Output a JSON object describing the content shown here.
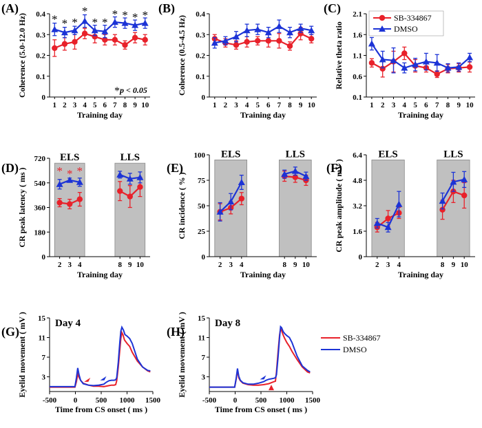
{
  "colors": {
    "sb": "#e8212a",
    "dmso": "#1c33d6",
    "shade": "#c0c0c0",
    "axis": "#000000"
  },
  "legend": {
    "sb": "SB-334867",
    "dmso": "DMSO"
  },
  "significance_note": {
    "star": "*",
    "text": "p < 0.05"
  },
  "chart_data": [
    {
      "id": "A",
      "panel_label": "(A)",
      "type": "line",
      "ylabel": "Coherence (5.0-12.0 Hz)",
      "xlabel": "Training day",
      "x": [
        1,
        2,
        3,
        4,
        5,
        6,
        7,
        8,
        9,
        10
      ],
      "xticks": [
        "1",
        "2",
        "3",
        "4",
        "5",
        "6",
        "7",
        "8",
        "9",
        "10"
      ],
      "ylim": [
        0,
        0.4
      ],
      "yticks": [
        "0",
        "0.1",
        "0.2",
        "0.3",
        "0.4"
      ],
      "series": [
        {
          "name": "SB-334867",
          "values": [
            0.235,
            0.255,
            0.265,
            0.305,
            0.29,
            0.275,
            0.275,
            0.25,
            0.285,
            0.275
          ],
          "err": [
            0.04,
            0.03,
            0.035,
            0.025,
            0.03,
            0.025,
            0.025,
            0.02,
            0.025,
            0.025
          ]
        },
        {
          "name": "DMSO",
          "values": [
            0.325,
            0.31,
            0.32,
            0.365,
            0.32,
            0.315,
            0.36,
            0.355,
            0.345,
            0.355
          ],
          "err": [
            0.03,
            0.025,
            0.02,
            0.03,
            0.025,
            0.03,
            0.025,
            0.025,
            0.025,
            0.025
          ]
        }
      ],
      "stars": [
        {
          "x": 1,
          "y": 0.375,
          "label": "*"
        },
        {
          "x": 2,
          "y": 0.355,
          "label": "*"
        },
        {
          "x": 3,
          "y": 0.36,
          "label": "*"
        },
        {
          "x": 4,
          "y": 0.415,
          "label": "*"
        },
        {
          "x": 5,
          "y": 0.36,
          "label": "*"
        },
        {
          "x": 6,
          "y": 0.36,
          "label": "*"
        },
        {
          "x": 7,
          "y": 0.4,
          "label": "*"
        },
        {
          "x": 8,
          "y": 0.395,
          "label": "*"
        },
        {
          "x": 9,
          "y": 0.385,
          "label": "*"
        },
        {
          "x": 10,
          "y": 0.395,
          "label": "*"
        }
      ]
    },
    {
      "id": "B",
      "panel_label": "(B)",
      "type": "line",
      "ylabel": "Coherence (0.5-4.5 Hz)",
      "xlabel": "Training day",
      "x": [
        1,
        2,
        3,
        4,
        5,
        6,
        7,
        8,
        9,
        10
      ],
      "xticks": [
        "1",
        "2",
        "3",
        "4",
        "5",
        "6",
        "7",
        "8",
        "9",
        "10"
      ],
      "ylim": [
        0,
        0.4
      ],
      "yticks": [
        "0",
        "0.1",
        "0.2",
        "0.3",
        "0.4"
      ],
      "series": [
        {
          "name": "SB-334867",
          "values": [
            0.28,
            0.26,
            0.25,
            0.265,
            0.27,
            0.27,
            0.27,
            0.245,
            0.305,
            0.28
          ],
          "err": [
            0.02,
            0.02,
            0.02,
            0.025,
            0.02,
            0.03,
            0.035,
            0.02,
            0.03,
            0.02
          ]
        },
        {
          "name": "DMSO",
          "values": [
            0.26,
            0.27,
            0.29,
            0.32,
            0.325,
            0.31,
            0.34,
            0.31,
            0.33,
            0.32
          ],
          "err": [
            0.025,
            0.02,
            0.025,
            0.03,
            0.025,
            0.025,
            0.03,
            0.025,
            0.02,
            0.02
          ]
        }
      ]
    },
    {
      "id": "C",
      "panel_label": "(C)",
      "type": "line",
      "ylabel": "Relative theta ratio",
      "xlabel": "Training day",
      "x": [
        1,
        2,
        3,
        4,
        5,
        6,
        7,
        8,
        9,
        10
      ],
      "xticks": [
        "1",
        "2",
        "3",
        "4",
        "5",
        "6",
        "7",
        "8",
        "9",
        "10"
      ],
      "ylim": [
        0.1,
        2.1
      ],
      "yticks": [
        "0.1",
        "0.6",
        "1.1",
        "1.6",
        "2.1"
      ],
      "series": [
        {
          "name": "SB-334867",
          "values": [
            0.92,
            0.78,
            0.95,
            1.15,
            0.85,
            0.8,
            0.65,
            0.78,
            0.8,
            0.82
          ],
          "err": [
            0.1,
            0.2,
            0.25,
            0.15,
            0.15,
            0.1,
            0.08,
            0.1,
            0.1,
            0.12
          ]
        },
        {
          "name": "DMSO",
          "values": [
            1.38,
            1.0,
            0.98,
            0.8,
            0.88,
            0.95,
            0.92,
            0.8,
            0.82,
            1.05
          ],
          "err": [
            0.15,
            0.2,
            0.3,
            0.12,
            0.15,
            0.2,
            0.2,
            0.1,
            0.1,
            0.1
          ]
        }
      ]
    },
    {
      "id": "D",
      "panel_label": "(D)",
      "type": "line",
      "ylabel": "CR peak latency ( ms )",
      "xlabel": "Training day",
      "x": [
        2,
        3,
        4,
        8,
        9,
        10
      ],
      "xticks": [
        "2",
        "3",
        "4",
        "8",
        "9",
        "10"
      ],
      "xdomain": [
        1,
        11
      ],
      "ylim": [
        0,
        720
      ],
      "yticks": [
        "0",
        "180",
        "360",
        "540",
        "720"
      ],
      "groups": [
        {
          "label": "ELS",
          "x": [
            1.5,
            4.5
          ]
        },
        {
          "label": "LLS",
          "x": [
            7.5,
            10.5
          ]
        }
      ],
      "series": [
        {
          "name": "SB-334867",
          "values": [
            395,
            385,
            420,
            480,
            440,
            510
          ],
          "err": [
            30,
            35,
            50,
            70,
            80,
            70
          ]
        },
        {
          "name": "DMSO",
          "values": [
            530,
            560,
            545,
            600,
            570,
            580
          ],
          "err": [
            35,
            15,
            30,
            25,
            40,
            40
          ]
        }
      ],
      "stars": [
        {
          "x": 2,
          "y": 630,
          "label": "*"
        },
        {
          "x": 3,
          "y": 610,
          "label": "*"
        },
        {
          "x": 4,
          "y": 630,
          "label": "*"
        }
      ]
    },
    {
      "id": "E",
      "panel_label": "(E)",
      "type": "line",
      "ylabel": "CR incidence ( % )",
      "xlabel": "Training day",
      "x": [
        2,
        3,
        4,
        8,
        9,
        10
      ],
      "xticks": [
        "2",
        "3",
        "4",
        "8",
        "9",
        "10"
      ],
      "xdomain": [
        1,
        11
      ],
      "ylim": [
        0,
        100
      ],
      "yticks": [
        "0",
        "25",
        "50",
        "75",
        "100"
      ],
      "groups": [
        {
          "label": "ELS",
          "x": [
            1.5,
            4.5
          ]
        },
        {
          "label": "LLS",
          "x": [
            7.5,
            10.5
          ]
        }
      ],
      "series": [
        {
          "name": "SB-334867",
          "values": [
            44,
            48,
            57,
            79,
            78,
            75
          ],
          "err": [
            8,
            6,
            6,
            5,
            5,
            5
          ]
        },
        {
          "name": "DMSO",
          "values": [
            44,
            54,
            73,
            81,
            84,
            79
          ],
          "err": [
            9,
            8,
            7,
            4,
            4,
            4
          ]
        }
      ]
    },
    {
      "id": "F",
      "panel_label": "(F)",
      "type": "line",
      "ylabel": "CR peak amplitude ( mV )",
      "xlabel": "Training day",
      "x": [
        2,
        3,
        4,
        8,
        9,
        10
      ],
      "xticks": [
        "2",
        "3",
        "4",
        "8",
        "9",
        "10"
      ],
      "xdomain": [
        1,
        11
      ],
      "ylim": [
        0,
        6.4
      ],
      "yticks": [
        "0",
        "1.6",
        "3.2",
        "4.8",
        "6.4"
      ],
      "groups": [
        {
          "label": "ELS",
          "x": [
            1.5,
            4.5
          ]
        },
        {
          "label": "LLS",
          "x": [
            7.5,
            10.5
          ]
        }
      ],
      "series": [
        {
          "name": "SB-334867",
          "values": [
            1.85,
            2.4,
            2.75,
            2.95,
            4.1,
            3.85
          ],
          "err": [
            0.3,
            0.5,
            0.35,
            0.6,
            0.7,
            0.8
          ]
        },
        {
          "name": "DMSO",
          "values": [
            2.1,
            1.85,
            3.3,
            3.5,
            4.7,
            4.85
          ],
          "err": [
            0.3,
            0.3,
            0.8,
            0.5,
            0.6,
            0.5
          ]
        }
      ]
    },
    {
      "id": "G",
      "panel_label": "(G)",
      "title": "Day 4",
      "type": "line",
      "ylabel": "Eyelid movement ( mV )",
      "xlabel": "Time from CS onset ( ms )",
      "xlim": [
        -500,
        1500
      ],
      "ylim": [
        0,
        15
      ],
      "xticks": [
        "-500",
        "0",
        "500",
        "1000",
        "1500"
      ],
      "yticks": [
        "3",
        "7",
        "11",
        "15"
      ],
      "series": [
        {
          "name": "SB-334867",
          "x": [
            -500,
            -100,
            -10,
            20,
            45,
            70,
            100,
            150,
            250,
            350,
            450,
            550,
            650,
            700,
            750,
            780,
            800,
            830,
            860,
            880,
            900,
            920,
            950,
            1000,
            1050,
            1100,
            1200,
            1300,
            1400,
            1450
          ],
          "y": [
            0.9,
            0.9,
            0.9,
            2.0,
            3.6,
            2.9,
            2.3,
            1.7,
            1.3,
            1.1,
            1.1,
            1.0,
            1.2,
            1.3,
            1.3,
            1.4,
            2.2,
            5.0,
            8.5,
            10.8,
            12.0,
            11.6,
            10.5,
            9.8,
            9.2,
            8.0,
            6.2,
            5.0,
            4.2,
            4.0
          ]
        },
        {
          "name": "DMSO",
          "x": [
            -500,
            -100,
            -10,
            20,
            45,
            70,
            100,
            150,
            250,
            350,
            450,
            550,
            600,
            650,
            700,
            750,
            780,
            800,
            830,
            860,
            880,
            900,
            930,
            960,
            1000,
            1050,
            1100,
            1200,
            1300,
            1400,
            1450
          ],
          "y": [
            1.0,
            1.0,
            1.0,
            2.8,
            4.8,
            3.4,
            2.3,
            1.6,
            1.3,
            1.2,
            1.3,
            1.5,
            1.9,
            2.2,
            2.3,
            2.3,
            2.4,
            2.8,
            6.0,
            10.0,
            12.3,
            13.1,
            12.5,
            11.6,
            11.3,
            10.8,
            9.8,
            6.6,
            5.0,
            4.3,
            4.2
          ]
        }
      ],
      "arrows": [
        {
          "color_of": "SB-334867",
          "x": 250,
          "y": 2.4,
          "dir": "down-left"
        },
        {
          "color_of": "DMSO",
          "x": 560,
          "y": 2.7,
          "dir": "down-left"
        }
      ]
    },
    {
      "id": "H",
      "panel_label": "(H)",
      "title": "Day 8",
      "type": "line",
      "ylabel": "Eyelid movement ( mV )",
      "xlabel": "Time from CS onset ( ms )",
      "xlim": [
        -500,
        1500
      ],
      "ylim": [
        0,
        15
      ],
      "xticks": [
        "-500",
        "0",
        "500",
        "1000",
        "1500"
      ],
      "yticks": [
        "3",
        "7",
        "11",
        "15"
      ],
      "series": [
        {
          "name": "SB-334867",
          "x": [
            -500,
            -100,
            -10,
            20,
            45,
            70,
            100,
            150,
            250,
            350,
            450,
            550,
            650,
            700,
            750,
            780,
            800,
            830,
            860,
            880,
            900,
            930,
            960,
            1000,
            1050,
            1100,
            1200,
            1300,
            1400,
            1450
          ],
          "y": [
            0.9,
            0.9,
            0.9,
            2.5,
            4.3,
            2.8,
            2.2,
            1.7,
            1.4,
            1.3,
            1.3,
            1.4,
            1.6,
            1.8,
            2.0,
            2.1,
            4.0,
            8.0,
            11.5,
            12.8,
            12.4,
            11.5,
            10.8,
            10.0,
            9.2,
            8.2,
            6.5,
            5.0,
            4.0,
            3.8
          ]
        },
        {
          "name": "DMSO",
          "x": [
            -500,
            -100,
            -10,
            20,
            45,
            70,
            100,
            150,
            250,
            350,
            450,
            550,
            600,
            650,
            700,
            750,
            780,
            800,
            830,
            860,
            880,
            900,
            930,
            960,
            1000,
            1050,
            1100,
            1200,
            1300,
            1400,
            1450
          ],
          "y": [
            0.9,
            0.9,
            0.9,
            2.7,
            4.7,
            3.1,
            2.3,
            1.8,
            1.5,
            1.5,
            1.7,
            2.0,
            2.3,
            2.5,
            2.6,
            2.7,
            2.8,
            3.4,
            7.0,
            11.0,
            13.2,
            13.0,
            12.2,
            11.8,
            11.4,
            11.0,
            10.0,
            7.2,
            5.2,
            4.3,
            4.0
          ]
        }
      ],
      "arrows": [
        {
          "color_of": "DMSO",
          "x": 560,
          "y": 2.9,
          "dir": "down-left"
        },
        {
          "color_of": "SB-334867",
          "x": 700,
          "y": 0.4,
          "dir": "up"
        }
      ]
    }
  ]
}
